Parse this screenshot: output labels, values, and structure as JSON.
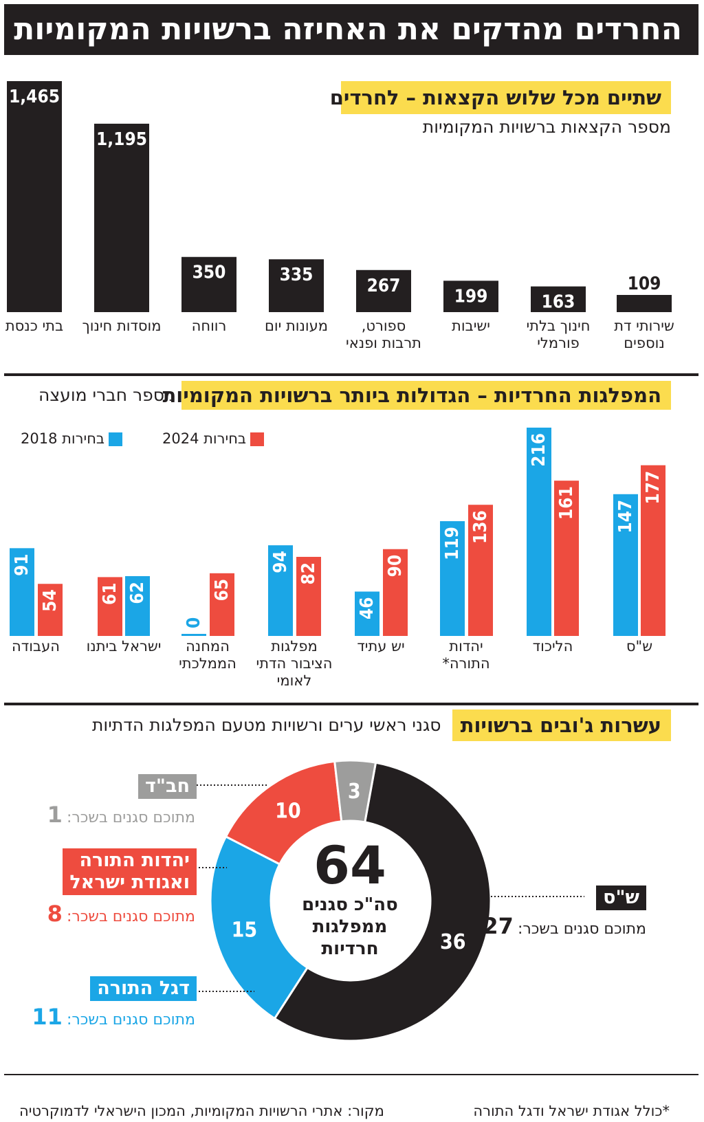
{
  "header": {
    "title": "החרדים מהדקים את האחיזה ברשויות המקומיות"
  },
  "section1": {
    "title": "שתיים מכל שלוש הקצאות – לחרדים",
    "subtitle": "מספר הקצאות ברשויות המקומיות"
  },
  "section2": {
    "title": "המפלגות החרדיות – הגדולות ביותר ברשויות המקומיות",
    "subtitle": "מספר חברי מועצה",
    "legend_2018": "בחירות 2018",
    "legend_2024": "בחירות 2024"
  },
  "section3": {
    "title": "עשרות ג'ובים ברשויות",
    "subtitle": "סגני ראשי ערים ורשויות מטעם המפלגות הדתיות",
    "center_number": "64",
    "center_label_1": "סה\"כ סגנים",
    "center_label_2": "ממפלגות",
    "center_label_3": "חרדיות",
    "paid_prefix": "מתוכם סגנים בשכר:"
  },
  "footer": {
    "source": "מקור: אתרי הרשויות המקומיות, המכון הישראלי לדמוקרטיה",
    "note": "*כולל אגודת ישראל ודגל התורה"
  },
  "colors": {
    "black": "#231f20",
    "blue": "#1ba6e6",
    "red": "#ee4c3f",
    "gray": "#9d9d9c",
    "yellow": "#fbdc4e"
  },
  "chart_data": [
    {
      "type": "bar",
      "title": "שתיים מכל שלוש הקצאות – לחרדים",
      "subtitle": "מספר הקצאות ברשויות המקומיות",
      "categories": [
        "בתי כנסת",
        "מוסדות חינוך",
        "רווחה",
        "מעונות יום",
        "ספורט, תרבות ופנאי",
        "ישיבות",
        "חינוך בלתי פורמלי",
        "שירותי דת נוספים"
      ],
      "values": [
        1465,
        1195,
        350,
        335,
        267,
        199,
        163,
        109
      ],
      "value_labels": [
        "1,465",
        "1,195",
        "350",
        "335",
        "267",
        "199",
        "163",
        "109"
      ]
    },
    {
      "type": "bar",
      "title": "המפלגות החרדיות – הגדולות ביותר ברשויות המקומיות",
      "ylabel": "מספר חברי מועצה",
      "categories": [
        "ש\"ס",
        "הליכוד",
        "יהדות התורה*",
        "יש עתיד",
        "מפלגות הציבור הדתי לאומי",
        "המחנה הממלכתי",
        "ישראל ביתנו",
        "העבודה"
      ],
      "series": [
        {
          "name": "בחירות 2018",
          "values": [
            147,
            216,
            119,
            46,
            94,
            0,
            62,
            91
          ]
        },
        {
          "name": "בחירות 2024",
          "values": [
            177,
            161,
            136,
            90,
            82,
            65,
            61,
            54
          ]
        }
      ]
    },
    {
      "type": "pie",
      "title": "עשרות ג'ובים ברשויות",
      "subtitle": "סגני ראשי ערים ורשויות מטעם המפלגות הדתיות",
      "total": 64,
      "slices": [
        {
          "name": "ש\"ס",
          "value": 36,
          "paid": 27,
          "color": "#231f20"
        },
        {
          "name": "דגל התורה",
          "value": 15,
          "paid": 11,
          "color": "#1ba6e6"
        },
        {
          "name": "יהדות התורה ואגודת ישראל",
          "value": 10,
          "paid": 8,
          "color": "#ee4c3f"
        },
        {
          "name": "חב\"ד",
          "value": 3,
          "paid": 1,
          "color": "#9d9d9c"
        }
      ]
    }
  ]
}
